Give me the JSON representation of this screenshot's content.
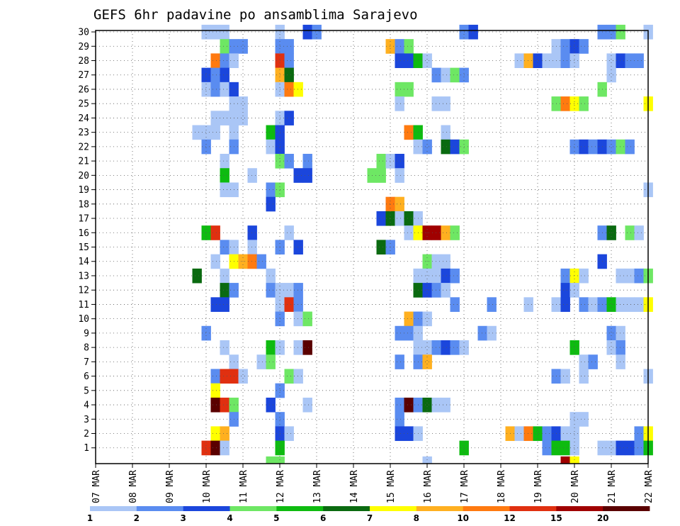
{
  "chart_data": {
    "type": "heatmap",
    "title": "GEFS 6hr padavine po ansamblima Sarajevo",
    "xlabel": "",
    "ylabel": "",
    "x_ticks": [
      "07 MAR",
      "08 MAR",
      "09 MAR",
      "10 MAR",
      "11 MAR",
      "12 MAR",
      "13 MAR",
      "14 MAR",
      "15 MAR",
      "16 MAR",
      "17 MAR",
      "18 MAR",
      "19 MAR",
      "20 MAR",
      "21 MAR",
      "22 MAR"
    ],
    "y_ticks": [
      "1",
      "2",
      "3",
      "4",
      "5",
      "6",
      "7",
      "8",
      "9",
      "10",
      "11",
      "12",
      "13",
      "14",
      "15",
      "16",
      "17",
      "18",
      "19",
      "20",
      "21",
      "22",
      "23",
      "24",
      "25",
      "26",
      "27",
      "28",
      "29",
      "30"
    ],
    "y_range": [
      0,
      30
    ],
    "time_step_hours": 6,
    "grid": "dotted",
    "colorbar": {
      "labels": [
        "1",
        "2",
        "3",
        "4",
        "5",
        "6",
        "7",
        "8",
        "10",
        "12",
        "15",
        "20"
      ],
      "colors": [
        "#aac6f6",
        "#5a8cf0",
        "#1b46dc",
        "#6ee764",
        "#0ebb10",
        "#0a6a10",
        "#ffff00",
        "#ffb020",
        "#ff7a10",
        "#e03010",
        "#a00000",
        "#5a0000"
      ],
      "bin_labels": [
        "1-2",
        "2-3",
        "3-4",
        "4-5",
        "5-6",
        "6-7",
        "7-8",
        "8-10",
        "10-12",
        "12-15",
        "15-20",
        ">20"
      ]
    },
    "cells": [
      [
        30,
        "10.0",
        1
      ],
      [
        30,
        "10.25",
        1
      ],
      [
        30,
        "10.5",
        1
      ],
      [
        30,
        "12.0",
        1
      ],
      [
        30,
        "12.75",
        3
      ],
      [
        30,
        "13.0",
        2
      ],
      [
        30,
        "17.0",
        2
      ],
      [
        30,
        "17.25",
        3
      ],
      [
        30,
        "20.75",
        2
      ],
      [
        30,
        "21.0",
        2
      ],
      [
        30,
        "21.25",
        4
      ],
      [
        30,
        "22.0",
        1
      ],
      [
        29,
        "10.5",
        4
      ],
      [
        29,
        "10.75",
        2
      ],
      [
        29,
        "11.0",
        2
      ],
      [
        29,
        "12.0",
        2
      ],
      [
        29,
        "12.25",
        2
      ],
      [
        29,
        "15.0",
        8
      ],
      [
        29,
        "15.25",
        2
      ],
      [
        29,
        "15.5",
        4
      ],
      [
        29,
        "19.5",
        1
      ],
      [
        29,
        "19.75",
        2
      ],
      [
        29,
        "20.0",
        3
      ],
      [
        29,
        "20.25",
        2
      ],
      [
        28,
        "10.25",
        9
      ],
      [
        28,
        "10.5",
        2
      ],
      [
        28,
        "10.75",
        1
      ],
      [
        28,
        "12.0",
        10
      ],
      [
        28,
        "12.25",
        2
      ],
      [
        28,
        "15.25",
        3
      ],
      [
        28,
        "15.5",
        3
      ],
      [
        28,
        "15.75",
        5
      ],
      [
        28,
        "16.0",
        1
      ],
      [
        28,
        "18.5",
        1
      ],
      [
        28,
        "18.75",
        8
      ],
      [
        28,
        "19.0",
        3
      ],
      [
        28,
        "19.25",
        1
      ],
      [
        28,
        "19.5",
        1
      ],
      [
        28,
        "19.75",
        2
      ],
      [
        28,
        "20.0",
        1
      ],
      [
        28,
        "21.0",
        1
      ],
      [
        28,
        "21.25",
        3
      ],
      [
        28,
        "21.5",
        2
      ],
      [
        28,
        "21.75",
        2
      ],
      [
        27,
        "10.0",
        3
      ],
      [
        27,
        "10.25",
        2
      ],
      [
        27,
        "10.5",
        3
      ],
      [
        27,
        "12.0",
        8
      ],
      [
        27,
        "12.25",
        6
      ],
      [
        27,
        "16.25",
        2
      ],
      [
        27,
        "16.5",
        1
      ],
      [
        27,
        "16.75",
        4
      ],
      [
        27,
        "17.0",
        2
      ],
      [
        27,
        "21.0",
        1
      ],
      [
        26,
        "10.0",
        1
      ],
      [
        26,
        "10.25",
        2
      ],
      [
        26,
        "10.5",
        1
      ],
      [
        26,
        "10.75",
        3
      ],
      [
        26,
        "12.0",
        1
      ],
      [
        26,
        "12.25",
        9
      ],
      [
        26,
        "12.5",
        7
      ],
      [
        26,
        "15.25",
        4
      ],
      [
        26,
        "15.5",
        4
      ],
      [
        26,
        "20.75",
        4
      ],
      [
        25,
        "10.75",
        1
      ],
      [
        25,
        "11.0",
        1
      ],
      [
        25,
        "15.25",
        1
      ],
      [
        25,
        "16.25",
        1
      ],
      [
        25,
        "16.5",
        1
      ],
      [
        25,
        "19.5",
        4
      ],
      [
        25,
        "19.75",
        9
      ],
      [
        25,
        "20.0",
        7
      ],
      [
        25,
        "20.25",
        4
      ],
      [
        25,
        "22.0",
        7
      ],
      [
        24,
        "10.25",
        1
      ],
      [
        24,
        "10.5",
        1
      ],
      [
        24,
        "10.75",
        1
      ],
      [
        24,
        "11.0",
        1
      ],
      [
        24,
        "12.0",
        1
      ],
      [
        24,
        "12.25",
        3
      ],
      [
        23,
        "9.75",
        1
      ],
      [
        23,
        "10.0",
        1
      ],
      [
        23,
        "10.25",
        1
      ],
      [
        23,
        "10.75",
        1
      ],
      [
        23,
        "11.75",
        5
      ],
      [
        23,
        "12.0",
        3
      ],
      [
        23,
        "15.5",
        9
      ],
      [
        23,
        "15.75",
        5
      ],
      [
        23,
        "16.5",
        1
      ],
      [
        22,
        "10.0",
        2
      ],
      [
        22,
        "10.75",
        2
      ],
      [
        22,
        "11.75",
        1
      ],
      [
        22,
        "12.0",
        3
      ],
      [
        22,
        "15.75",
        1
      ],
      [
        22,
        "16.0",
        2
      ],
      [
        22,
        "16.5",
        6
      ],
      [
        22,
        "16.75",
        3
      ],
      [
        22,
        "17.0",
        4
      ],
      [
        22,
        "20.0",
        2
      ],
      [
        22,
        "20.25",
        3
      ],
      [
        22,
        "20.5",
        2
      ],
      [
        22,
        "20.75",
        3
      ],
      [
        22,
        "21.0",
        2
      ],
      [
        22,
        "21.25",
        4
      ],
      [
        22,
        "21.5",
        2
      ],
      [
        21,
        "10.5",
        1
      ],
      [
        21,
        "12.0",
        4
      ],
      [
        21,
        "12.25",
        2
      ],
      [
        21,
        "12.75",
        2
      ],
      [
        21,
        "14.75",
        4
      ],
      [
        21,
        "15.0",
        1
      ],
      [
        21,
        "15.25",
        3
      ],
      [
        20,
        "10.5",
        5
      ],
      [
        20,
        "11.25",
        1
      ],
      [
        20,
        "12.5",
        3
      ],
      [
        20,
        "12.75",
        3
      ],
      [
        20,
        "14.5",
        4
      ],
      [
        20,
        "14.75",
        4
      ],
      [
        20,
        "15.25",
        1
      ],
      [
        19,
        "10.5",
        1
      ],
      [
        19,
        "10.75",
        1
      ],
      [
        19,
        "11.75",
        2
      ],
      [
        19,
        "12.0",
        4
      ],
      [
        19,
        "22.0",
        1
      ],
      [
        18,
        "11.75",
        3
      ],
      [
        18,
        "15.0",
        9
      ],
      [
        18,
        "15.25",
        8
      ],
      [
        17,
        "14.75",
        3
      ],
      [
        17,
        "15.0",
        6
      ],
      [
        17,
        "15.25",
        1
      ],
      [
        17,
        "15.5",
        6
      ],
      [
        17,
        "15.75",
        1
      ],
      [
        16,
        "10.0",
        5
      ],
      [
        16,
        "10.25",
        10
      ],
      [
        16,
        "11.25",
        3
      ],
      [
        16,
        "12.25",
        1
      ],
      [
        16,
        "15.5",
        1
      ],
      [
        16,
        "15.75",
        7
      ],
      [
        16,
        "16.0",
        11
      ],
      [
        16,
        "16.25",
        11
      ],
      [
        16,
        "16.5",
        8
      ],
      [
        16,
        "16.75",
        4
      ],
      [
        16,
        "20.75",
        2
      ],
      [
        16,
        "21.0",
        6
      ],
      [
        16,
        "21.5",
        4
      ],
      [
        16,
        "21.75",
        1
      ],
      [
        15,
        "10.5",
        2
      ],
      [
        15,
        "10.75",
        1
      ],
      [
        15,
        "11.25",
        1
      ],
      [
        15,
        "12.0",
        2
      ],
      [
        15,
        "12.5",
        3
      ],
      [
        15,
        "14.75",
        6
      ],
      [
        15,
        "15.0",
        2
      ],
      [
        14,
        "10.25",
        1
      ],
      [
        14,
        "10.75",
        7
      ],
      [
        14,
        "11.0",
        8
      ],
      [
        14,
        "11.25",
        9
      ],
      [
        14,
        "11.5",
        2
      ],
      [
        14,
        "16.0",
        4
      ],
      [
        14,
        "16.25",
        1
      ],
      [
        14,
        "16.5",
        1
      ],
      [
        14,
        "20.75",
        3
      ],
      [
        13,
        "9.75",
        6
      ],
      [
        13,
        "10.5",
        1
      ],
      [
        13,
        "11.75",
        1
      ],
      [
        13,
        "15.75",
        1
      ],
      [
        13,
        "16.0",
        1
      ],
      [
        13,
        "16.25",
        1
      ],
      [
        13,
        "16.5",
        3
      ],
      [
        13,
        "16.75",
        2
      ],
      [
        13,
        "19.75",
        2
      ],
      [
        13,
        "20.0",
        7
      ],
      [
        13,
        "20.25",
        1
      ],
      [
        13,
        "21.25",
        1
      ],
      [
        13,
        "21.5",
        1
      ],
      [
        13,
        "21.75",
        2
      ],
      [
        13,
        "22.0",
        4
      ],
      [
        12,
        "10.5",
        6
      ],
      [
        12,
        "10.75",
        2
      ],
      [
        12,
        "11.75",
        2
      ],
      [
        12,
        "12.0",
        1
      ],
      [
        12,
        "12.25",
        1
      ],
      [
        12,
        "12.5",
        2
      ],
      [
        12,
        "15.75",
        6
      ],
      [
        12,
        "16.0",
        3
      ],
      [
        12,
        "16.25",
        2
      ],
      [
        12,
        "16.5",
        1
      ],
      [
        12,
        "19.75",
        3
      ],
      [
        12,
        "20.0",
        1
      ],
      [
        11,
        "10.25",
        3
      ],
      [
        11,
        "10.5",
        3
      ],
      [
        11,
        "12.0",
        1
      ],
      [
        11,
        "12.25",
        10
      ],
      [
        11,
        "12.5",
        2
      ],
      [
        11,
        "16.75",
        2
      ],
      [
        11,
        "17.75",
        2
      ],
      [
        11,
        "18.75",
        1
      ],
      [
        11,
        "19.5",
        1
      ],
      [
        11,
        "19.75",
        3
      ],
      [
        11,
        "20.25",
        2
      ],
      [
        11,
        "20.5",
        1
      ],
      [
        11,
        "20.75",
        2
      ],
      [
        11,
        "21.0",
        5
      ],
      [
        11,
        "21.25",
        1
      ],
      [
        11,
        "21.5",
        1
      ],
      [
        11,
        "21.75",
        1
      ],
      [
        11,
        "22.0",
        7
      ],
      [
        10,
        "12.0",
        2
      ],
      [
        10,
        "12.5",
        1
      ],
      [
        10,
        "12.75",
        4
      ],
      [
        10,
        "15.5",
        8
      ],
      [
        10,
        "15.75",
        2
      ],
      [
        10,
        "16.0",
        1
      ],
      [
        9,
        "10.0",
        2
      ],
      [
        9,
        "15.25",
        2
      ],
      [
        9,
        "15.5",
        2
      ],
      [
        9,
        "15.75",
        1
      ],
      [
        9,
        "17.5",
        2
      ],
      [
        9,
        "17.75",
        1
      ],
      [
        9,
        "21.0",
        2
      ],
      [
        9,
        "21.25",
        1
      ],
      [
        8,
        "10.5",
        1
      ],
      [
        8,
        "11.75",
        5
      ],
      [
        8,
        "12.0",
        1
      ],
      [
        8,
        "12.5",
        1
      ],
      [
        8,
        "12.75",
        12
      ],
      [
        8,
        "15.75",
        1
      ],
      [
        8,
        "16.0",
        1
      ],
      [
        8,
        "16.25",
        2
      ],
      [
        8,
        "16.5",
        3
      ],
      [
        8,
        "16.75",
        2
      ],
      [
        8,
        "17.0",
        1
      ],
      [
        8,
        "20.0",
        5
      ],
      [
        8,
        "21.0",
        1
      ],
      [
        8,
        "21.25",
        2
      ],
      [
        7,
        "10.75",
        1
      ],
      [
        7,
        "11.5",
        1
      ],
      [
        7,
        "11.75",
        4
      ],
      [
        7,
        "15.25",
        2
      ],
      [
        7,
        "15.75",
        2
      ],
      [
        7,
        "16.0",
        8
      ],
      [
        7,
        "20.25",
        1
      ],
      [
        7,
        "20.5",
        2
      ],
      [
        7,
        "21.25",
        1
      ],
      [
        6,
        "10.25",
        2
      ],
      [
        6,
        "10.5",
        10
      ],
      [
        6,
        "10.75",
        10
      ],
      [
        6,
        "11.0",
        1
      ],
      [
        6,
        "12.25",
        4
      ],
      [
        6,
        "12.5",
        1
      ],
      [
        6,
        "19.5",
        2
      ],
      [
        6,
        "19.75",
        1
      ],
      [
        6,
        "20.25",
        1
      ],
      [
        6,
        "22.0",
        1
      ],
      [
        5,
        "10.25",
        7
      ],
      [
        5,
        "12.0",
        2
      ],
      [
        4,
        "10.25",
        12
      ],
      [
        4,
        "10.5",
        10
      ],
      [
        4,
        "10.75",
        4
      ],
      [
        4,
        "11.75",
        3
      ],
      [
        4,
        "12.75",
        1
      ],
      [
        4,
        "15.25",
        2
      ],
      [
        4,
        "15.5",
        12
      ],
      [
        4,
        "15.75",
        2
      ],
      [
        4,
        "16.0",
        6
      ],
      [
        4,
        "16.25",
        1
      ],
      [
        4,
        "16.5",
        1
      ],
      [
        3,
        "10.75",
        2
      ],
      [
        3,
        "12.0",
        2
      ],
      [
        3,
        "15.25",
        2
      ],
      [
        3,
        "20.0",
        1
      ],
      [
        3,
        "20.25",
        1
      ],
      [
        2,
        "10.25",
        7
      ],
      [
        2,
        "10.5",
        8
      ],
      [
        2,
        "12.0",
        3
      ],
      [
        2,
        "12.25",
        1
      ],
      [
        2,
        "15.25",
        3
      ],
      [
        2,
        "15.5",
        3
      ],
      [
        2,
        "15.75",
        1
      ],
      [
        2,
        "18.25",
        8
      ],
      [
        2,
        "18.5",
        1
      ],
      [
        2,
        "18.75",
        9
      ],
      [
        2,
        "19.0",
        5
      ],
      [
        2,
        "19.25",
        2
      ],
      [
        2,
        "19.5",
        3
      ],
      [
        2,
        "19.75",
        1
      ],
      [
        2,
        "20.0",
        1
      ],
      [
        2,
        "21.75",
        2
      ],
      [
        2,
        "22.0",
        7
      ],
      [
        1,
        "10.0",
        10
      ],
      [
        1,
        "10.25",
        12
      ],
      [
        1,
        "10.5",
        1
      ],
      [
        1,
        "12.0",
        5
      ],
      [
        1,
        "17.0",
        5
      ],
      [
        1,
        "19.25",
        2
      ],
      [
        1,
        "19.5",
        5
      ],
      [
        1,
        "19.75",
        5
      ],
      [
        1,
        "20.0",
        1
      ],
      [
        1,
        "20.75",
        1
      ],
      [
        1,
        "21.0",
        1
      ],
      [
        1,
        "21.25",
        3
      ],
      [
        1,
        "21.5",
        3
      ],
      [
        1,
        "21.75",
        2
      ],
      [
        1,
        "22.0",
        5
      ],
      [
        0,
        "11.75",
        4
      ],
      [
        0,
        "12.0",
        4
      ],
      [
        0,
        "16.0",
        1
      ],
      [
        0,
        "19.75",
        11
      ],
      [
        0,
        "20.0",
        7
      ]
    ]
  }
}
